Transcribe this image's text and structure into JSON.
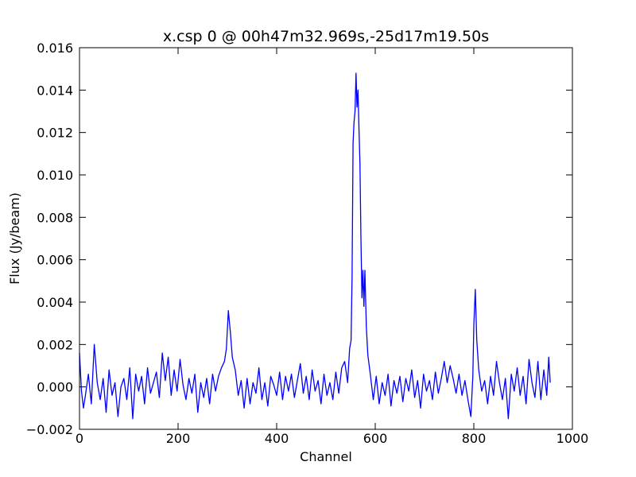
{
  "chart_data": {
    "type": "line",
    "title": "x.csp 0 @ 00h47m32.969s,-25d17m19.50s",
    "xlabel": "Channel",
    "ylabel": "Flux (Jy/beam)",
    "xlim": [
      0,
      1000
    ],
    "xticks": [
      0,
      200,
      400,
      600,
      800,
      1000
    ],
    "ylim": [
      -0.002,
      0.016
    ],
    "yticks": [
      {
        "value": -0.002,
        "label": "−0.002"
      },
      {
        "value": 0,
        "label": "0.000"
      },
      0.002,
      0.004,
      0.006,
      0.008,
      {
        "value": 0.01,
        "label": "0.010"
      },
      0.012,
      0.014,
      0.016
    ],
    "series": [
      {
        "color": "#0000ff",
        "x": [
          0,
          4,
          8,
          12,
          18,
          24,
          30,
          36,
          42,
          48,
          54,
          60,
          66,
          72,
          78,
          84,
          90,
          96,
          102,
          108,
          114,
          120,
          126,
          132,
          138,
          144,
          150,
          156,
          162,
          168,
          174,
          180,
          186,
          192,
          198,
          204,
          210,
          216,
          222,
          228,
          234,
          240,
          246,
          252,
          258,
          264,
          270,
          276,
          282,
          288,
          294,
          298,
          302,
          306,
          310,
          316,
          322,
          328,
          334,
          340,
          346,
          352,
          358,
          364,
          370,
          376,
          382,
          388,
          394,
          400,
          406,
          412,
          418,
          424,
          430,
          436,
          442,
          448,
          454,
          460,
          466,
          472,
          478,
          484,
          490,
          496,
          502,
          508,
          514,
          520,
          526,
          532,
          538,
          544,
          548,
          551,
          553,
          555,
          557,
          559,
          561,
          563,
          565,
          567,
          569,
          571,
          573,
          575,
          577,
          579,
          582,
          585,
          590,
          596,
          602,
          608,
          614,
          620,
          626,
          632,
          638,
          644,
          650,
          656,
          662,
          668,
          674,
          680,
          686,
          692,
          698,
          704,
          710,
          716,
          722,
          728,
          734,
          740,
          746,
          752,
          758,
          764,
          770,
          776,
          782,
          788,
          794,
          798,
          800,
          803,
          806,
          810,
          816,
          822,
          828,
          834,
          840,
          846,
          852,
          858,
          864,
          870,
          876,
          882,
          888,
          894,
          900,
          906,
          912,
          918,
          924,
          930,
          936,
          942,
          948,
          952,
          955
        ],
        "values": [
          0.0016,
          -0.0002,
          -0.001,
          -0.0004,
          0.0006,
          -0.0008,
          0.002,
          0.0002,
          -0.0006,
          0.0004,
          -0.0012,
          0.0008,
          -0.0004,
          0.0002,
          -0.0014,
          0.0,
          0.0004,
          -0.0006,
          0.0009,
          -0.0015,
          0.0006,
          -0.0002,
          0.0005,
          -0.0008,
          0.0009,
          -0.0003,
          0.0002,
          0.0007,
          -0.0005,
          0.0016,
          0.0003,
          0.0014,
          -0.0004,
          0.0008,
          -0.0002,
          0.0013,
          0.0001,
          -0.0006,
          0.0004,
          -0.0003,
          0.0006,
          -0.0012,
          0.0002,
          -0.0005,
          0.0004,
          -0.0008,
          0.0006,
          -0.0002,
          0.0005,
          0.0009,
          0.0012,
          0.0018,
          0.0036,
          0.0026,
          0.0014,
          0.0008,
          -0.0004,
          0.0003,
          -0.001,
          0.0004,
          -0.0008,
          0.0002,
          -0.0003,
          0.0009,
          -0.0006,
          0.0002,
          -0.0009,
          0.0005,
          0.0001,
          -0.0004,
          0.0007,
          -0.0006,
          0.0005,
          -0.0002,
          0.0006,
          -0.0005,
          0.0003,
          0.0011,
          -0.0003,
          0.0005,
          -0.0006,
          0.0008,
          -0.0002,
          0.0003,
          -0.0008,
          0.0006,
          -0.0004,
          0.0002,
          -0.0006,
          0.0007,
          -0.0003,
          0.0009,
          0.0012,
          0.0002,
          0.0018,
          0.0022,
          0.0052,
          0.0115,
          0.0125,
          0.013,
          0.0148,
          0.0132,
          0.014,
          0.0122,
          0.0105,
          0.007,
          0.0042,
          0.0055,
          0.0038,
          0.0055,
          0.0028,
          0.0015,
          0.0006,
          -0.0006,
          0.0005,
          -0.0008,
          0.0002,
          -0.0004,
          0.0006,
          -0.0009,
          0.0003,
          -0.0003,
          0.0005,
          -0.0007,
          0.0004,
          -0.0002,
          0.0008,
          -0.0005,
          0.0003,
          -0.001,
          0.0006,
          -0.0002,
          0.0003,
          -0.0006,
          0.0007,
          -0.0003,
          0.0004,
          0.0012,
          0.0002,
          0.001,
          0.0004,
          -0.0003,
          0.0006,
          -0.0004,
          0.0003,
          -0.0006,
          -0.0014,
          0.0005,
          0.0029,
          0.0046,
          0.0022,
          0.0008,
          -0.0002,
          0.0003,
          -0.0008,
          0.0005,
          -0.0004,
          0.0012,
          0.0002,
          -0.0006,
          0.0004,
          -0.0015,
          0.0006,
          -0.0002,
          0.0009,
          -0.0004,
          0.0005,
          -0.0008,
          0.0013,
          0.0002,
          -0.0005,
          0.0012,
          -0.0006,
          0.0008,
          -0.0004,
          0.0014,
          0.0002
        ]
      }
    ]
  }
}
